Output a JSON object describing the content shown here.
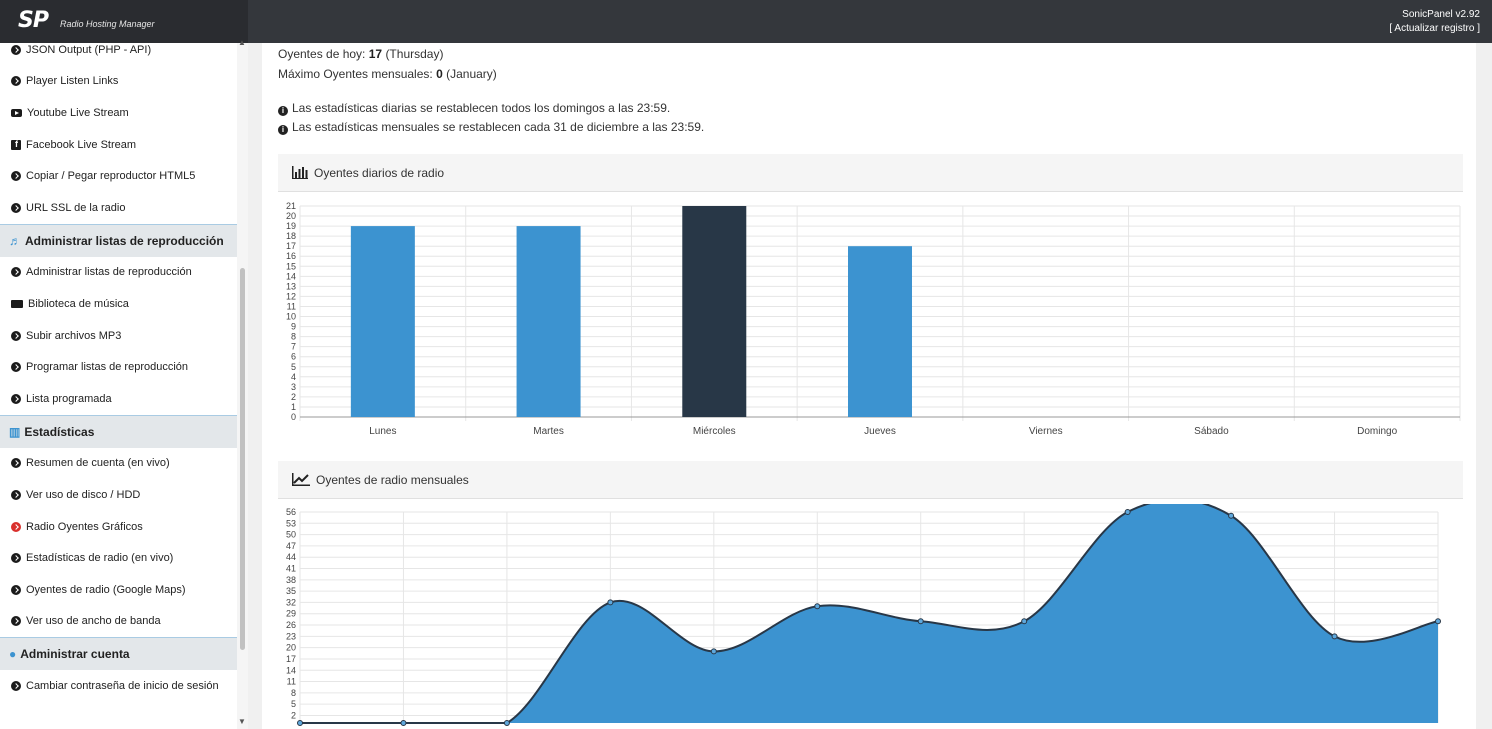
{
  "app": {
    "logo": "SP",
    "subtitle": "Radio Hosting Manager",
    "version": "SonicPanel v2.92",
    "refresh": "[ Actualizar registro ]"
  },
  "sidebar": {
    "items_top": [
      {
        "label": "JSON Output (PHP - API)",
        "icon": "circle-arrow-icon"
      },
      {
        "label": "Player Listen Links",
        "icon": "circle-arrow-icon"
      },
      {
        "label": "Youtube Live Stream",
        "icon": "youtube-icon"
      },
      {
        "label": "Facebook Live Stream",
        "icon": "facebook-icon"
      },
      {
        "label": "Copiar / Pegar reproductor HTML5",
        "icon": "circle-arrow-icon"
      },
      {
        "label": "URL SSL de la radio",
        "icon": "circle-arrow-icon"
      }
    ],
    "section_playlists": "Administrar listas de reproducción",
    "items_playlists": [
      {
        "label": "Administrar listas de reproducción",
        "icon": "circle-arrow-icon"
      },
      {
        "label": "Biblioteca de música",
        "icon": "folder-icon"
      },
      {
        "label": "Subir archivos MP3",
        "icon": "circle-arrow-icon"
      },
      {
        "label": "Programar listas de reproducción",
        "icon": "circle-arrow-icon"
      },
      {
        "label": "Lista programada",
        "icon": "circle-arrow-icon"
      }
    ],
    "section_stats": "Estadísticas",
    "items_stats": [
      {
        "label": "Resumen de cuenta (en vivo)",
        "icon": "circle-arrow-icon"
      },
      {
        "label": "Ver uso de disco / HDD",
        "icon": "circle-arrow-icon"
      },
      {
        "label": "Radio Oyentes Gráficos",
        "icon": "circle-arrow-red-icon"
      },
      {
        "label": "Estadísticas de radio (en vivo)",
        "icon": "circle-arrow-icon"
      },
      {
        "label": "Oyentes de radio (Google Maps)",
        "icon": "circle-arrow-icon"
      },
      {
        "label": "Ver uso de ancho de banda",
        "icon": "circle-arrow-icon"
      }
    ],
    "section_account": "Administrar cuenta",
    "items_account": [
      {
        "label": "Cambiar contraseña de inicio de sesión",
        "icon": "circle-arrow-icon"
      }
    ]
  },
  "main": {
    "today_label": "Oyentes de hoy:",
    "today_value": "17",
    "today_day": "(Thursday)",
    "max_label": "Máximo Oyentes mensuales:",
    "max_value": "0",
    "max_month": "(January)",
    "note1": "Las estadísticas diarias se restablecen todos los domingos a las 23:59.",
    "note2": "Las estadísticas mensuales se restablecen cada 31 de diciembre a las 23:59.",
    "daily_title": "Oyentes diarios de radio",
    "monthly_title": "Oyentes de radio mensuales"
  },
  "colors": {
    "bar": "#3c93d0",
    "bar_highlight": "#283747",
    "area": "#3c93d0",
    "line": "#283747"
  },
  "chart_data": [
    {
      "type": "bar",
      "title": "Oyentes diarios de radio",
      "categories": [
        "Lunes",
        "Martes",
        "Miércoles",
        "Jueves",
        "Viernes",
        "Sábado",
        "Domingo"
      ],
      "values": [
        19,
        19,
        21,
        17,
        0,
        0,
        0
      ],
      "highlight_index": 2,
      "ylim": [
        0,
        21
      ],
      "yticks": [
        0,
        1,
        2,
        3,
        4,
        5,
        6,
        7,
        8,
        9,
        10,
        11,
        12,
        13,
        14,
        15,
        16,
        17,
        18,
        19,
        20,
        21
      ],
      "grid": true
    },
    {
      "type": "area",
      "title": "Oyentes de radio mensuales",
      "values": [
        0,
        0,
        0,
        32,
        19,
        31,
        27,
        27,
        56,
        55,
        23,
        27
      ],
      "ylim": [
        0,
        56
      ],
      "yticks": [
        2,
        5,
        8,
        11,
        14,
        17,
        20,
        23,
        26,
        29,
        32,
        35,
        38,
        41,
        44,
        47,
        50,
        53,
        56
      ],
      "grid": true
    }
  ]
}
